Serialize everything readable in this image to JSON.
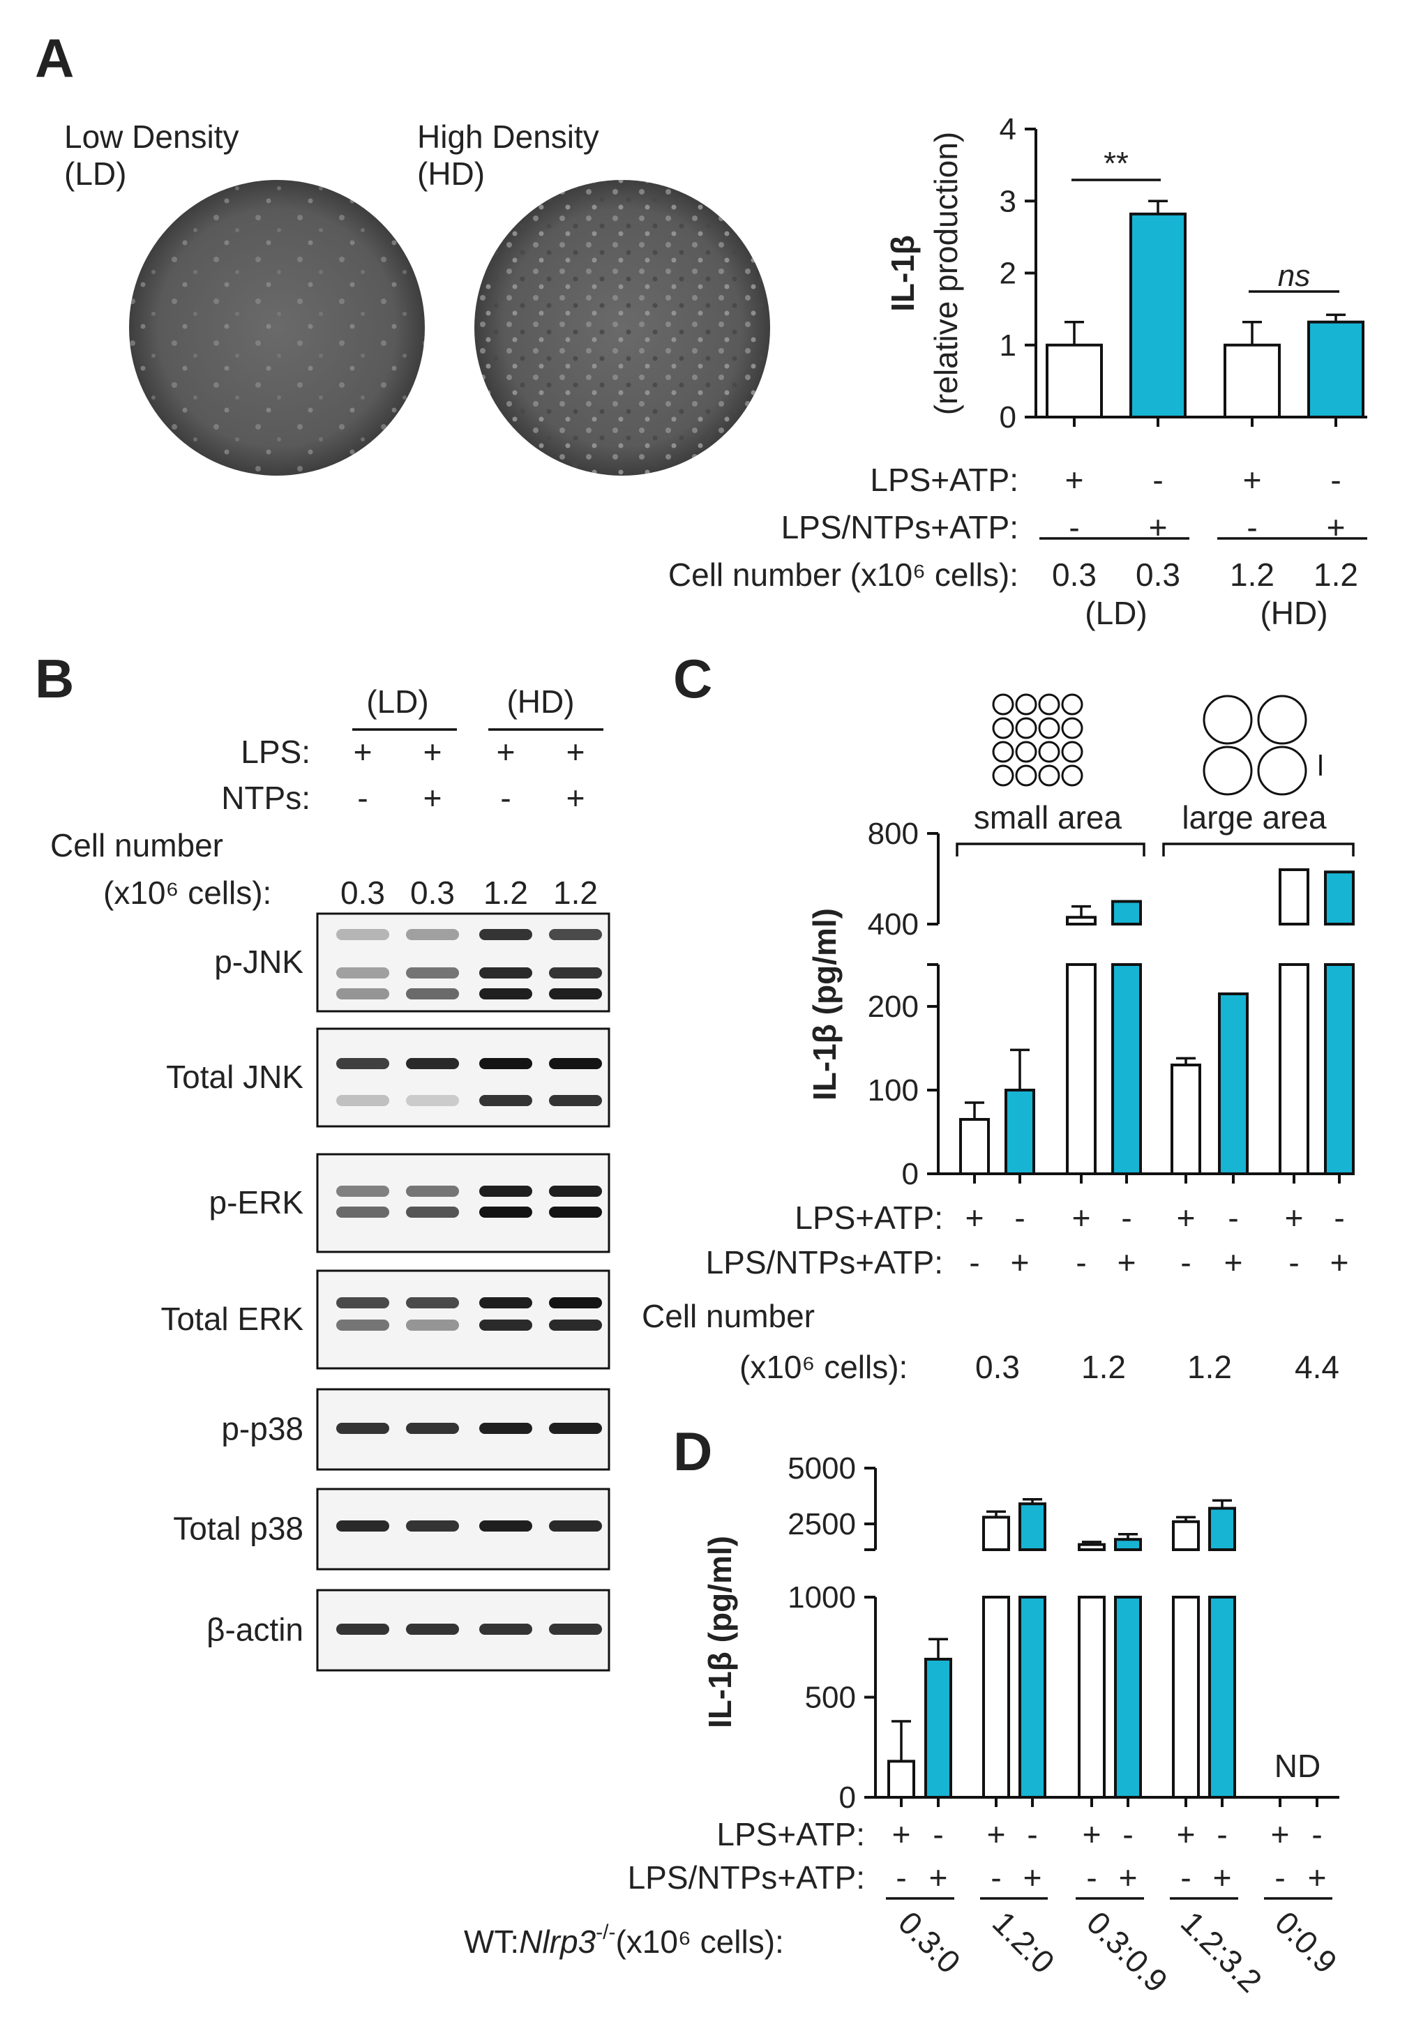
{
  "panel_labels": {
    "a": "A",
    "b": "B",
    "c": "C",
    "d": "D"
  },
  "panel_a": {
    "image_labels": {
      "low_line1": "Low Density",
      "low_line2": "(LD)",
      "high_line1": "High Density",
      "high_line2": "(HD)"
    },
    "ylabel_line1": "IL-1β",
    "ylabel_line2": "(relative production)",
    "sig_left": "**",
    "sig_right": "ns",
    "row_labels": [
      "LPS+ATP:",
      "LPS/NTPs+ATP:",
      "Cell number (x10⁶ cells):"
    ],
    "row_values": [
      [
        "+",
        "-",
        "+",
        "-"
      ],
      [
        "-",
        "+",
        "-",
        "+"
      ],
      [
        "0.3",
        "0.3",
        "1.2",
        "1.2"
      ]
    ],
    "group_labels": [
      "(LD)",
      "(HD)"
    ]
  },
  "panel_b": {
    "group_labels": [
      "(LD)",
      "(HD)"
    ],
    "row_labels": [
      "LPS:",
      "NTPs:",
      "Cell number",
      "(x10⁶ cells):"
    ],
    "lps": [
      "+",
      "+",
      "+",
      "+"
    ],
    "ntps": [
      "-",
      "+",
      "-",
      "+"
    ],
    "cell_numbers": [
      "0.3",
      "0.3",
      "1.2",
      "1.2"
    ],
    "blots": [
      "p-JNK",
      "Total JNK",
      "p-ERK",
      "Total  ERK",
      "p-p38",
      "Total  p38",
      "β-actin"
    ]
  },
  "panel_c": {
    "ylabel": "IL-1β (pg/ml)",
    "area_labels": [
      "small area",
      "large area"
    ],
    "row_labels": [
      "LPS+ATP:",
      "LPS/NTPs+ATP:",
      "Cell number",
      "(x10⁶ cells):"
    ],
    "lps_atp": [
      "+",
      "-",
      "+",
      "-",
      "+",
      "-",
      "+",
      "-"
    ],
    "lps_ntps_atp": [
      "-",
      "+",
      "-",
      "+",
      "-",
      "+",
      "-",
      "+"
    ],
    "cell_numbers": [
      "0.3",
      "1.2",
      "1.2",
      "4.4"
    ]
  },
  "panel_d": {
    "ylabel": "IL-1β (pg/ml)",
    "nd_label": "ND",
    "row_labels": [
      "LPS+ATP:",
      "LPS/NTPs+ATP:"
    ],
    "lps_atp": [
      "+",
      "-",
      "+",
      "-",
      "+",
      "-",
      "+",
      "-",
      "+",
      "-"
    ],
    "lps_ntps_atp": [
      "-",
      "+",
      "-",
      "+",
      "-",
      "+",
      "-",
      "+",
      "-",
      "+"
    ],
    "ratio_label_prefix": "WT:",
    "ratio_label_gene": "Nlrp3",
    "ratio_label_suffix": "(x10⁶ cells):",
    "ratio_label_sup": "-/-",
    "ratios": [
      "0.3:0",
      "1.2:0",
      "0.3:0.9",
      "1.2:3.2",
      "0:0.9"
    ]
  },
  "chart_data": [
    {
      "type": "bar",
      "panel": "A",
      "ylabel": "IL-1β (relative production)",
      "ylim": [
        0,
        4
      ],
      "yticks": [
        "0",
        "1",
        "2",
        "3",
        "4"
      ],
      "categories": [
        "LD LPS+ATP",
        "LD LPS/NTPs+ATP",
        "HD LPS+ATP",
        "HD LPS/NTPs+ATP"
      ],
      "values": [
        1.0,
        2.82,
        1.0,
        1.32
      ],
      "errors": [
        0.32,
        0.18,
        0.32,
        0.1
      ],
      "colors": [
        "#ffffff",
        "#17b4d4",
        "#ffffff",
        "#17b4d4"
      ]
    },
    {
      "type": "bar",
      "panel": "C",
      "ylabel": "IL-1β (pg/ml)",
      "yticks": [
        "0",
        "100",
        "200",
        "400",
        "800"
      ],
      "broken_axis": true,
      "categories": [
        "0.3 LPS+ATP",
        "0.3 LPS/NTPs+ATP",
        "1.2 small LPS+ATP",
        "1.2 small LPS/NTPs+ATP",
        "1.2 large LPS+ATP",
        "1.2 large LPS/NTPs+ATP",
        "4.4 LPS+ATP",
        "4.4 LPS/NTPs+ATP"
      ],
      "values": [
        65,
        100,
        430,
        500,
        130,
        215,
        640,
        630
      ],
      "errors": [
        20,
        48,
        8,
        0,
        8,
        0,
        0,
        0
      ],
      "colors": [
        "#ffffff",
        "#17b4d4",
        "#ffffff",
        "#17b4d4",
        "#ffffff",
        "#17b4d4",
        "#ffffff",
        "#17b4d4"
      ]
    },
    {
      "type": "bar",
      "panel": "D",
      "ylabel": "IL-1β (pg/ml)",
      "yticks": [
        "0",
        "500",
        "1000",
        "2500",
        "5000"
      ],
      "broken_axis": true,
      "categories": [
        "0.3:0 LPS+ATP",
        "0.3:0 LPS/NTPs+ATP",
        "1.2:0 LPS+ATP",
        "1.2:0 LPS/NTPs+ATP",
        "0.3:0.9 LPS+ATP",
        "0.3:0.9 LPS/NTPs+ATP",
        "1.2:3.2 LPS+ATP",
        "1.2:3.2 LPS/NTPs+ATP",
        "0:0.9 LPS+ATP",
        "0:0.9 LPS/NTPs+ATP"
      ],
      "values": [
        180,
        690,
        2800,
        3400,
        1700,
        1900,
        2600,
        3200,
        0,
        0
      ],
      "errors": [
        200,
        100,
        250,
        200,
        100,
        200,
        200,
        350,
        0,
        0
      ],
      "colors": [
        "#ffffff",
        "#17b4d4",
        "#ffffff",
        "#17b4d4",
        "#ffffff",
        "#17b4d4",
        "#ffffff",
        "#17b4d4",
        "#ffffff",
        "#17b4d4"
      ]
    }
  ]
}
